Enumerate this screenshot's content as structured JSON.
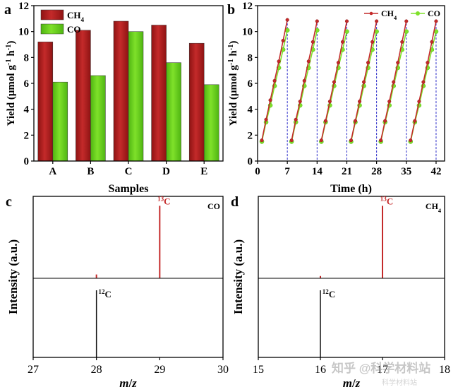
{
  "chart_data": [
    {
      "panel": "a",
      "type": "bar",
      "title": "",
      "xlabel": "Samples",
      "ylabel": "Yield (μmol·g⁻¹·h⁻¹)",
      "categories": [
        "A",
        "B",
        "C",
        "D",
        "E"
      ],
      "series": [
        {
          "name": "CH₄",
          "color": "#c42a2a",
          "values": [
            9.2,
            10.1,
            10.8,
            10.5,
            9.1
          ]
        },
        {
          "name": "CO",
          "color": "#7fe12a",
          "values": [
            6.1,
            6.6,
            10.0,
            7.6,
            5.9
          ]
        }
      ],
      "ylim": [
        0,
        12
      ],
      "yticks": [
        0,
        2,
        4,
        6,
        8,
        10,
        12
      ],
      "legend": "top-left"
    },
    {
      "panel": "b",
      "type": "line",
      "title": "",
      "xlabel": "Time (h)",
      "ylabel": "Yield (μmol·g⁻¹·h⁻¹)",
      "xlim": [
        0,
        44
      ],
      "ylim": [
        0,
        12
      ],
      "xticks": [
        0,
        7,
        14,
        21,
        28,
        35,
        42
      ],
      "yticks": [
        0,
        2,
        4,
        6,
        8,
        10,
        12
      ],
      "cycle_ends": [
        7,
        14,
        21,
        28,
        35,
        42
      ],
      "series": [
        {
          "name": "CH₄",
          "color": "#c42a2a",
          "cycles": [
            {
              "x": [
                1,
                2,
                3,
                4,
                5,
                6,
                7
              ],
              "y": [
                1.6,
                3.2,
                4.7,
                6.2,
                7.7,
                9.3,
                10.9
              ]
            },
            {
              "x": [
                8,
                9,
                10,
                11,
                12,
                13,
                14
              ],
              "y": [
                1.6,
                3.2,
                4.6,
                6.2,
                7.7,
                9.2,
                10.8
              ]
            },
            {
              "x": [
                15,
                16,
                17,
                18,
                19,
                20,
                21
              ],
              "y": [
                1.6,
                3.1,
                4.6,
                6.1,
                7.6,
                9.2,
                10.8
              ]
            },
            {
              "x": [
                22,
                23,
                24,
                25,
                26,
                27,
                28
              ],
              "y": [
                1.6,
                3.1,
                4.6,
                6.1,
                7.6,
                9.2,
                10.8
              ]
            },
            {
              "x": [
                29,
                30,
                31,
                32,
                33,
                34,
                35
              ],
              "y": [
                1.6,
                3.1,
                4.6,
                6.1,
                7.6,
                9.2,
                10.8
              ]
            },
            {
              "x": [
                36,
                37,
                38,
                39,
                40,
                41,
                42
              ],
              "y": [
                1.6,
                3.1,
                4.6,
                6.1,
                7.6,
                9.2,
                10.8
              ]
            }
          ]
        },
        {
          "name": "CO",
          "color": "#7fe12a",
          "cycles": [
            {
              "x": [
                1,
                2,
                3,
                4,
                5,
                6,
                7
              ],
              "y": [
                1.5,
                3.0,
                4.3,
                5.8,
                7.2,
                8.6,
                10.1
              ]
            },
            {
              "x": [
                8,
                9,
                10,
                11,
                12,
                13,
                14
              ],
              "y": [
                1.5,
                3.0,
                4.3,
                5.8,
                7.2,
                8.6,
                10.1
              ]
            },
            {
              "x": [
                15,
                16,
                17,
                18,
                19,
                20,
                21
              ],
              "y": [
                1.5,
                3.0,
                4.3,
                5.8,
                7.2,
                8.6,
                10.0
              ]
            },
            {
              "x": [
                22,
                23,
                24,
                25,
                26,
                27,
                28
              ],
              "y": [
                1.5,
                3.0,
                4.3,
                5.8,
                7.2,
                8.6,
                10.0
              ]
            },
            {
              "x": [
                29,
                30,
                31,
                32,
                33,
                34,
                35
              ],
              "y": [
                1.5,
                3.0,
                4.3,
                5.8,
                7.2,
                8.6,
                10.0
              ]
            },
            {
              "x": [
                36,
                37,
                38,
                39,
                40,
                41,
                42
              ],
              "y": [
                1.5,
                3.0,
                4.3,
                5.8,
                7.2,
                8.6,
                10.0
              ]
            }
          ]
        }
      ],
      "legend": "top-right"
    },
    {
      "panel": "c",
      "type": "spectrum",
      "title": "CO",
      "xlabel": "m/z",
      "ylabel": "Intensity (a.u.)",
      "xlim": [
        27,
        30
      ],
      "xticks": [
        27,
        28,
        29,
        30
      ],
      "upper": {
        "color": "#c42a2a",
        "label": "13C",
        "label_sup": "13",
        "label_base": "C",
        "peaks": [
          {
            "x": 28,
            "h": 0.05
          },
          {
            "x": 29,
            "h": 0.95
          }
        ]
      },
      "lower": {
        "color": "#111111",
        "label": "12C",
        "label_sup": "12",
        "label_base": "C",
        "peaks": [
          {
            "x": 28,
            "h": 0.95
          }
        ]
      }
    },
    {
      "panel": "d",
      "type": "spectrum",
      "title": "CH₄",
      "xlabel": "m/z",
      "ylabel": "Intensity (a.u.)",
      "xlim": [
        15,
        18
      ],
      "xticks": [
        15,
        16,
        17,
        18
      ],
      "upper": {
        "color": "#c42a2a",
        "label": "13C",
        "label_sup": "13",
        "label_base": "C",
        "peaks": [
          {
            "x": 16,
            "h": 0.03
          },
          {
            "x": 17,
            "h": 0.95
          }
        ]
      },
      "lower": {
        "color": "#111111",
        "label": "12C",
        "label_sup": "12",
        "label_base": "C",
        "peaks": [
          {
            "x": 16,
            "h": 0.95
          }
        ]
      }
    }
  ],
  "panel_labels": [
    "a",
    "b",
    "c",
    "d"
  ],
  "watermark": [
    "知乎 @科学材料站",
    "科学材料站"
  ]
}
